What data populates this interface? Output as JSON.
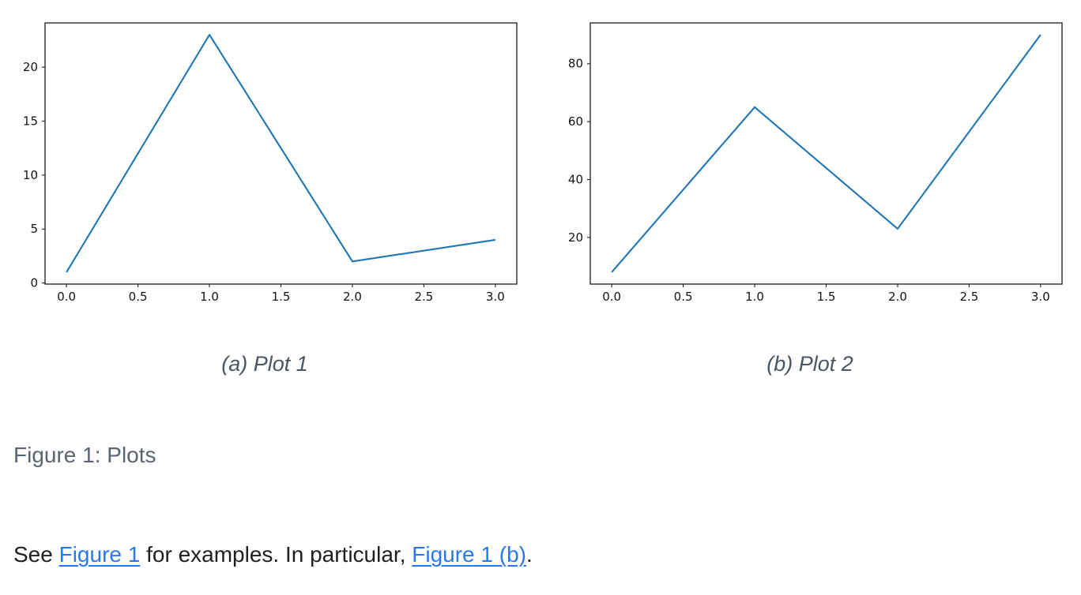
{
  "figure": {
    "caption": "Figure 1: Plots",
    "subfigures": [
      {
        "label": "a",
        "caption": "(a) Plot 1"
      },
      {
        "label": "b",
        "caption": "(b) Plot 2"
      }
    ]
  },
  "paragraph": {
    "segments": [
      {
        "text": "See ",
        "type": "text"
      },
      {
        "text": "Figure 1",
        "type": "link"
      },
      {
        "text": " for examples. In particular, ",
        "type": "text"
      },
      {
        "text": "Figure 1 (b)",
        "type": "link"
      },
      {
        "text": ".",
        "type": "text"
      }
    ]
  },
  "colors": {
    "line": "#1f77b4",
    "link": "#2878f0",
    "subcaption_text": "#4b5563",
    "figure_caption_text": "#5b6470",
    "body_text": "#1d1f23",
    "axis": "#1c1c1c"
  },
  "chart_data": [
    {
      "type": "line",
      "x": [
        0,
        1,
        2,
        3
      ],
      "y": [
        1,
        23,
        2,
        4
      ],
      "title": "",
      "xlabel": "",
      "ylabel": "",
      "xlim": [
        -0.15,
        3.15
      ],
      "ylim": [
        -0.1,
        24.1
      ],
      "xticks": [
        0,
        0.5,
        1,
        1.5,
        2,
        2.5,
        3
      ],
      "xtick_labels": [
        "0.0",
        "0.5",
        "1.0",
        "1.5",
        "2.0",
        "2.5",
        "3.0"
      ],
      "yticks": [
        0,
        5,
        10,
        15,
        20
      ],
      "ytick_labels": [
        "0",
        "5",
        "10",
        "15",
        "20"
      ],
      "line_color": "#1f77b4",
      "grid": false,
      "legend": null,
      "subcaption": "(a) Plot 1"
    },
    {
      "type": "line",
      "x": [
        0,
        1,
        2,
        3
      ],
      "y": [
        8,
        65,
        23,
        90
      ],
      "title": "",
      "xlabel": "",
      "ylabel": "",
      "xlim": [
        -0.15,
        3.15
      ],
      "ylim": [
        3.9,
        94.1
      ],
      "xticks": [
        0,
        0.5,
        1,
        1.5,
        2,
        2.5,
        3
      ],
      "xtick_labels": [
        "0.0",
        "0.5",
        "1.0",
        "1.5",
        "2.0",
        "2.5",
        "3.0"
      ],
      "yticks": [
        20,
        40,
        60,
        80
      ],
      "ytick_labels": [
        "20",
        "40",
        "60",
        "80"
      ],
      "line_color": "#1f77b4",
      "grid": false,
      "legend": null,
      "subcaption": "(b) Plot 2"
    }
  ]
}
